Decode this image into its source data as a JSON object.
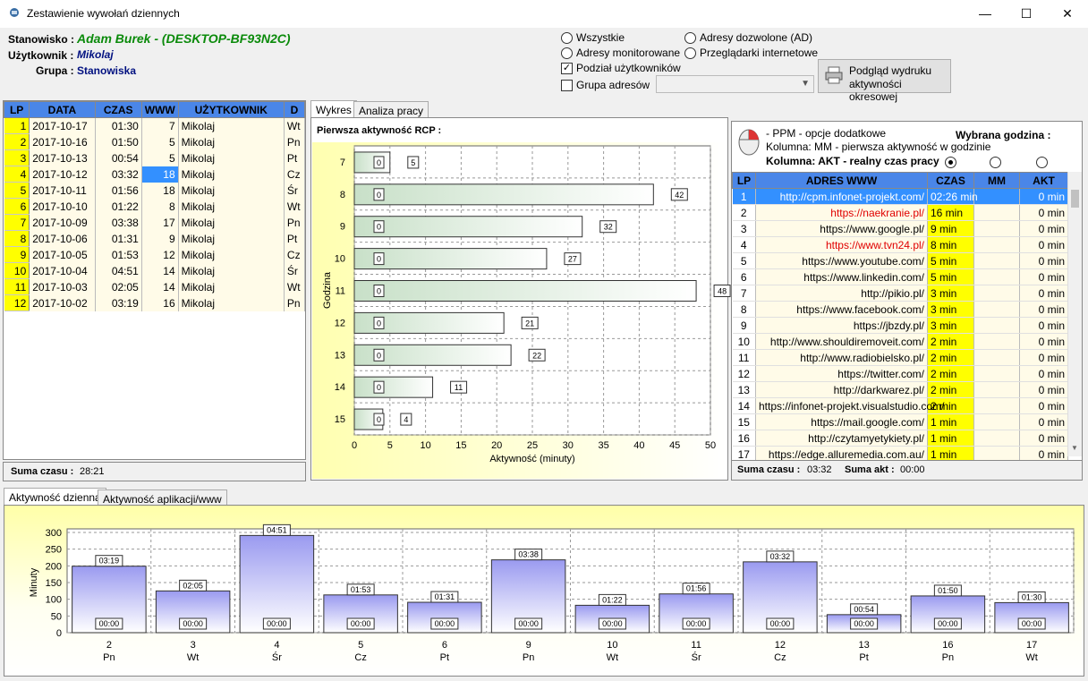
{
  "window": {
    "title": "Zestawienie wywołań dziennych",
    "min": "—",
    "max": "☐",
    "close": "✕"
  },
  "info": {
    "stanowisko_label": "Stanowisko :",
    "stanowisko": "Adam Burek - (DESKTOP-BF93N2C)",
    "uzytkownik_label": "Użytkownik :",
    "uzytkownik": "Mikolaj",
    "grupa_label": "Grupa :",
    "grupa": "Stanowiska"
  },
  "options": {
    "wszystkie": "Wszystkie",
    "monitorowane": "Adresy monitorowane",
    "dozwolone": "Adresy dozwolone (AD)",
    "przegladarki": "Przeglądarki internetowe",
    "podzial": "Podział użytkowników",
    "grupa": "Grupa adresów",
    "print_btn_1": "Podgląd wydruku",
    "print_btn_2": "aktywności okresowej"
  },
  "left_table": {
    "headers": [
      "LP",
      "DATA",
      "CZAS",
      "WWW",
      "UŻYTKOWNIK",
      "D"
    ],
    "rows": [
      [
        "1",
        "2017-10-17",
        "01:30",
        "7",
        "Mikolaj",
        "Wt"
      ],
      [
        "2",
        "2017-10-16",
        "01:50",
        "5",
        "Mikolaj",
        "Pn"
      ],
      [
        "3",
        "2017-10-13",
        "00:54",
        "5",
        "Mikolaj",
        "Pt"
      ],
      [
        "4",
        "2017-10-12",
        "03:32",
        "18",
        "Mikolaj",
        "Cz"
      ],
      [
        "5",
        "2017-10-11",
        "01:56",
        "18",
        "Mikolaj",
        "Śr"
      ],
      [
        "6",
        "2017-10-10",
        "01:22",
        "8",
        "Mikolaj",
        "Wt"
      ],
      [
        "7",
        "2017-10-09",
        "03:38",
        "17",
        "Mikolaj",
        "Pn"
      ],
      [
        "8",
        "2017-10-06",
        "01:31",
        "9",
        "Mikolaj",
        "Pt"
      ],
      [
        "9",
        "2017-10-05",
        "01:53",
        "12",
        "Mikolaj",
        "Cz"
      ],
      [
        "10",
        "2017-10-04",
        "04:51",
        "14",
        "Mikolaj",
        "Śr"
      ],
      [
        "11",
        "2017-10-03",
        "02:05",
        "14",
        "Mikolaj",
        "Wt"
      ],
      [
        "12",
        "2017-10-02",
        "03:19",
        "16",
        "Mikolaj",
        "Pn"
      ]
    ],
    "suma_label": "Suma czasu :",
    "suma": "28:21"
  },
  "mid_tabs": [
    "Wykres",
    "Analiza pracy"
  ],
  "bar_chart": {
    "title": "Pierwsza aktywność RCP :"
  },
  "right_panel": {
    "line1": "- PPM - opcje dodatkowe",
    "wybrana": "Wybrana godzina :",
    "line2": "Kolumna: MM - pierwsza aktywność w godzinie",
    "line3": "Kolumna: AKT - realny czas pracy",
    "headers": [
      "LP",
      "ADRES WWW",
      "CZAS",
      "MM",
      "AKT"
    ],
    "rows": [
      [
        "1",
        "http://cpm.infonet-projekt.com/",
        "02:26 min",
        "",
        "0 min"
      ],
      [
        "2",
        "https://naekranie.pl/",
        "16 min",
        "",
        "0 min"
      ],
      [
        "3",
        "https://www.google.pl/",
        "9 min",
        "",
        "0 min"
      ],
      [
        "4",
        "https://www.tvn24.pl/",
        "8 min",
        "",
        "0 min"
      ],
      [
        "5",
        "https://www.youtube.com/",
        "5 min",
        "",
        "0 min"
      ],
      [
        "6",
        "https://www.linkedin.com/",
        "5 min",
        "",
        "0 min"
      ],
      [
        "7",
        "http://pikio.pl/",
        "3 min",
        "",
        "0 min"
      ],
      [
        "8",
        "https://www.facebook.com/",
        "3 min",
        "",
        "0 min"
      ],
      [
        "9",
        "https://jbzdy.pl/",
        "3 min",
        "",
        "0 min"
      ],
      [
        "10",
        "http://www.shouldiremoveit.com/",
        "2 min",
        "",
        "0 min"
      ],
      [
        "11",
        "http://www.radiobielsko.pl/",
        "2 min",
        "",
        "0 min"
      ],
      [
        "12",
        "https://twitter.com/",
        "2 min",
        "",
        "0 min"
      ],
      [
        "13",
        "http://darkwarez.pl/",
        "2 min",
        "",
        "0 min"
      ],
      [
        "14",
        "https://infonet-projekt.visualstudio.com/",
        "2 min",
        "",
        "0 min"
      ],
      [
        "15",
        "https://mail.google.com/",
        "1 min",
        "",
        "0 min"
      ],
      [
        "16",
        "http://czytamyetykiety.pl/",
        "1 min",
        "",
        "0 min"
      ],
      [
        "17",
        "https://edge.alluremedia.com.au/",
        "1 min",
        "",
        "0 min"
      ]
    ],
    "suma_label": "Suma czasu :",
    "suma": "03:32",
    "akt_label": "Suma akt :",
    "akt": "00:00"
  },
  "bottom_tabs": [
    "Aktywność dzienna",
    "Aktywność aplikacji/www"
  ],
  "chart_data": [
    {
      "type": "bar",
      "orientation": "horizontal",
      "title": "",
      "xlabel": "Aktywność (minuty)",
      "ylabel": "Godzina",
      "categories": [
        "7",
        "8",
        "9",
        "10",
        "11",
        "12",
        "13",
        "14",
        "15"
      ],
      "values": [
        5,
        42,
        32,
        27,
        48,
        21,
        22,
        11,
        4
      ],
      "start_labels": [
        "0",
        "0",
        "0",
        "0",
        "0",
        "0",
        "0",
        "0",
        "0"
      ],
      "xlim": [
        0,
        50
      ],
      "xticks": [
        0,
        5,
        10,
        15,
        20,
        25,
        30,
        35,
        40,
        45,
        50
      ],
      "grid": true
    },
    {
      "type": "bar",
      "title": "",
      "xlabel": "",
      "ylabel": "Minuty",
      "categories": [
        "2",
        "3",
        "4",
        "5",
        "6",
        "9",
        "10",
        "11",
        "12",
        "13",
        "16",
        "17"
      ],
      "sublabels": [
        "Pn",
        "Wt",
        "Śr",
        "Cz",
        "Pt",
        "Pn",
        "Wt",
        "Śr",
        "Cz",
        "Pt",
        "Pn",
        "Wt"
      ],
      "values": [
        199,
        125,
        291,
        113,
        91,
        218,
        82,
        116,
        212,
        54,
        110,
        90
      ],
      "labels": [
        "03:19",
        "02:05",
        "04:51",
        "01:53",
        "01:31",
        "03:38",
        "01:22",
        "01:56",
        "03:32",
        "00:54",
        "01:50",
        "01:30"
      ],
      "base_labels": [
        "00:00",
        "00:00",
        "00:00",
        "00:00",
        "00:00",
        "00:00",
        "00:00",
        "00:00",
        "00:00",
        "00:00",
        "00:00",
        "00:00"
      ],
      "ylim": [
        0,
        300
      ],
      "yticks": [
        0,
        50,
        100,
        150,
        200,
        250,
        300
      ],
      "grid": true
    }
  ]
}
